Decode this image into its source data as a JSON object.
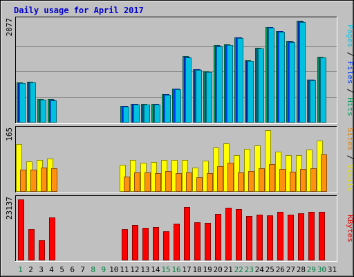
{
  "chart_data": {
    "type": "bar",
    "title": "Daily usage for April 2017",
    "days": [
      "1",
      "2",
      "3",
      "4",
      "5",
      "6",
      "7",
      "8",
      "9",
      "10",
      "11",
      "12",
      "13",
      "14",
      "15",
      "16",
      "17",
      "18",
      "19",
      "20",
      "21",
      "22",
      "23",
      "24",
      "25",
      "26",
      "27",
      "28",
      "29",
      "30",
      "31"
    ],
    "weekend_days": [
      1,
      8,
      9,
      15,
      16,
      22,
      23,
      29,
      30
    ],
    "panels": [
      {
        "id": "top",
        "max_label": "2077",
        "max": 2077,
        "right_labels": [
          {
            "text": "Pages",
            "color": "#00c0e0"
          },
          {
            "text": " / ",
            "color": "#000000"
          },
          {
            "text": "Files",
            "color": "#0040ff"
          },
          {
            "text": " / ",
            "color": "#000000"
          },
          {
            "text": "Hits",
            "color": "#00a060"
          }
        ],
        "series": [
          {
            "name": "Hits",
            "color": "#00a060",
            "values": [
              810,
              825,
              468,
              464,
              0,
              0,
              0,
              0,
              0,
              0,
              334,
              375,
              370,
              374,
              574,
              686,
              1350,
              1085,
              1040,
              1580,
              1598,
              1740,
              1265,
              1526,
              1955,
              1870,
              1660,
              2077,
              874,
              1340,
              0
            ]
          },
          {
            "name": "Files",
            "color": "#0040ff",
            "values": [
              800,
              815,
              458,
              454,
              0,
              0,
              0,
              0,
              0,
              0,
              326,
              365,
              362,
              366,
              564,
              676,
              1335,
              1075,
              1030,
              1568,
              1586,
              1730,
              1255,
              1515,
              1945,
              1860,
              1650,
              2067,
              864,
              1330,
              0
            ]
          },
          {
            "name": "Pages",
            "color": "#00c0e0",
            "values": [
              790,
              805,
              450,
              445,
              0,
              0,
              0,
              0,
              0,
              0,
              318,
              356,
              354,
              358,
              555,
              668,
              1320,
              1065,
              1020,
              1555,
              1572,
              1720,
              1245,
              1505,
              1930,
              1850,
              1640,
              2055,
              855,
              1320,
              0
            ]
          }
        ]
      },
      {
        "id": "middle",
        "max_label": "165",
        "max": 165,
        "right_labels": [
          {
            "text": "Sites",
            "color": "#e08000"
          },
          {
            "text": " / ",
            "color": "#000000"
          },
          {
            "text": "Visits",
            "color": "#e0e000"
          }
        ],
        "series": [
          {
            "name": "Visits",
            "color": "#ffff00",
            "values": [
              128,
              80,
              84,
              89,
              0,
              0,
              0,
              0,
              0,
              0,
              71,
              84,
              77,
              78,
              85,
              84,
              85,
              63,
              83,
              118,
              129,
              98,
              114,
              124,
              165,
              106,
              97,
              97,
              112,
              136,
              0
            ]
          },
          {
            "name": "Sites",
            "color": "#ff9010",
            "values": [
              59,
              58,
              63,
              62,
              0,
              0,
              0,
              0,
              0,
              0,
              39,
              50,
              50,
              48,
              54,
              48,
              51,
              38,
              48,
              68,
              77,
              51,
              55,
              61,
              74,
              60,
              52,
              60,
              62,
              100,
              0
            ]
          }
        ]
      },
      {
        "id": "bottom",
        "max_label": "23137",
        "max": 23137,
        "right_labels": [
          {
            "text": "KBytes",
            "color": "#e00000"
          }
        ],
        "series": [
          {
            "name": "KBytes",
            "color": "#ff0000",
            "values": [
              23137,
              11600,
              7500,
              16200,
              0,
              0,
              0,
              0,
              0,
              0,
              11600,
              13300,
              12300,
              12600,
              10800,
              13800,
              20300,
              14300,
              14000,
              17600,
              19900,
              19300,
              16800,
              17400,
              16900,
              18300,
              17400,
              17900,
              18300,
              18300,
              0
            ]
          }
        ]
      }
    ]
  }
}
